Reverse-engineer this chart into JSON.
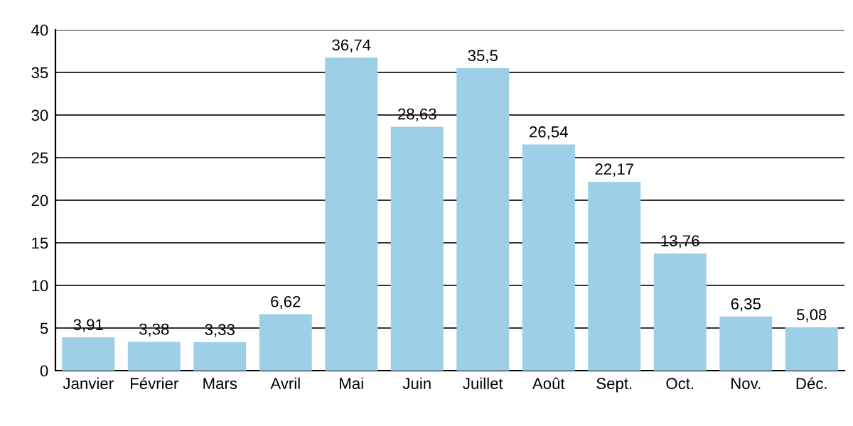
{
  "chart_data": {
    "type": "bar",
    "categories": [
      "Janvier",
      "Février",
      "Mars",
      "Avril",
      "Mai",
      "Juin",
      "Juillet",
      "Août",
      "Sept.",
      "Oct.",
      "Nov.",
      "Déc."
    ],
    "values": [
      3.91,
      3.38,
      3.33,
      6.62,
      36.74,
      28.63,
      35.5,
      26.54,
      22.17,
      13.76,
      6.35,
      5.08
    ],
    "value_labels": [
      "3,91",
      "3,38",
      "3,33",
      "6,62",
      "36,74",
      "28,63",
      "35,5",
      "26,54",
      "22,17",
      "13,76",
      "6,35",
      "5,08"
    ],
    "color": "#9dcfe8",
    "ylim": [
      0,
      40
    ],
    "yticks": [
      0,
      5,
      10,
      15,
      20,
      25,
      30,
      35,
      40
    ],
    "grid": "y"
  }
}
